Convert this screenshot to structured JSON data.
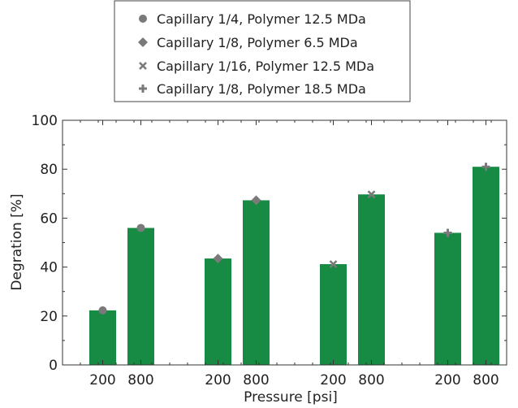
{
  "chart_data": {
    "type": "bar",
    "xlabel": "Pressure [psi]",
    "ylabel": "Degration [%]",
    "ylim": [
      0,
      100
    ],
    "yticks": [
      0,
      20,
      40,
      60,
      80,
      100
    ],
    "categories": [
      "200",
      "800"
    ],
    "bar_color": "#178a44",
    "marker_color": "#7a7a7a",
    "legend_position": "top-center",
    "grid": false,
    "series": [
      {
        "name": "Capillary 1/4, Polymer 12.5 MDa",
        "marker": "circle",
        "values": [
          22.3,
          56.0
        ]
      },
      {
        "name": "Capillary 1/8, Polymer 6.5 MDa",
        "marker": "diamond",
        "values": [
          43.5,
          67.3
        ]
      },
      {
        "name": "Capillary 1/16, Polymer 12.5 MDa",
        "marker": "x",
        "values": [
          41.2,
          69.7
        ]
      },
      {
        "name": "Capillary 1/8, Polymer 18.5 MDa",
        "marker": "plus",
        "values": [
          54.0,
          81.0
        ]
      }
    ]
  }
}
